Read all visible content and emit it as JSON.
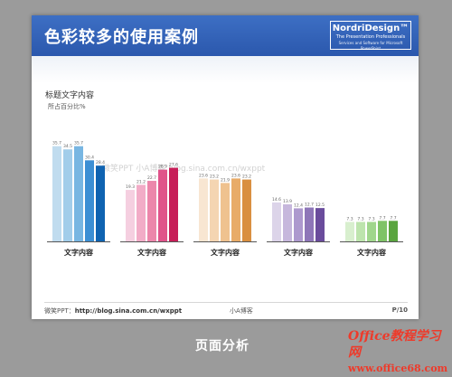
{
  "slide": {
    "title": "色彩较多的使用案例",
    "logo": {
      "name": "NordriDesign™",
      "tagline": "The Presentation Professionals",
      "sub": "Services and Software for Microsoft PowerPoint"
    },
    "footer": {
      "left_label": "微笑PPT：",
      "left_url": "http://blog.sina.com.cn/wxppt",
      "middle": "小A博客",
      "page": "P/10"
    }
  },
  "chart_data": {
    "type": "bar",
    "title": "标题文字内容",
    "subtitle": "所占百分比%",
    "categories": [
      "文字内容",
      "文字内容",
      "文字内容",
      "文字内容",
      "文字内容"
    ],
    "groups": [
      {
        "values": [
          35.7,
          34.5,
          35.7,
          30.4,
          28.4
        ],
        "colors": [
          "#c0dcef",
          "#a2cdea",
          "#78b6e2",
          "#3c8fd4",
          "#0f63b1"
        ]
      },
      {
        "values": [
          19.3,
          21.2,
          22.7,
          26.9,
          27.6
        ],
        "colors": [
          "#f5cfe0",
          "#f2acc7",
          "#ec86ab",
          "#e0538a",
          "#c71e58"
        ]
      },
      {
        "values": [
          23.6,
          23.2,
          21.9,
          23.6,
          23.2
        ],
        "colors": [
          "#f8e6d2",
          "#f4d5b2",
          "#efc28f",
          "#e8ab68",
          "#d98f40"
        ]
      },
      {
        "values": [
          14.6,
          13.9,
          12.4,
          12.7,
          12.5
        ],
        "colors": [
          "#dcd4e9",
          "#c6b7dc",
          "#ad99ce",
          "#8e76b8",
          "#6a4c9c"
        ]
      },
      {
        "values": [
          7.3,
          7.3,
          7.3,
          7.7,
          7.7
        ],
        "colors": [
          "#d8efce",
          "#bde4ad",
          "#a0d68c",
          "#7fc367",
          "#5aa53f"
        ]
      }
    ],
    "ylim": [
      0,
      40
    ],
    "grid": false,
    "watermark": "微笑PPT   小A博客   blog.sina.com.cn/wxppt"
  },
  "page": {
    "caption": "页面分析",
    "watermark_line1": "Office教程学习网",
    "watermark_line2": "www.office68.com"
  }
}
